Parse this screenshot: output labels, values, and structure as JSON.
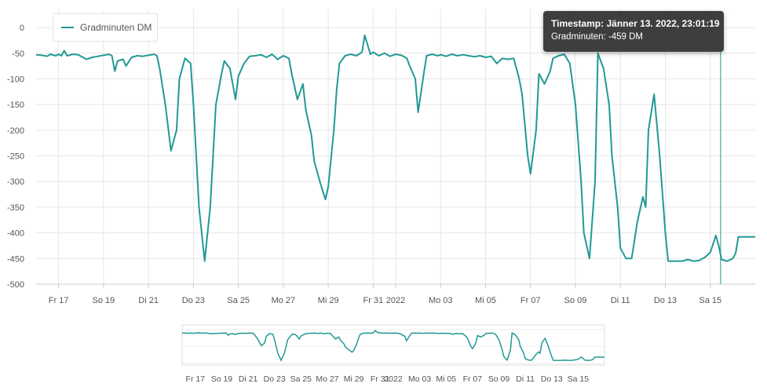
{
  "chart_data": {
    "type": "line",
    "series": [
      {
        "name": "Gradminuten DM",
        "points": [
          [
            "2022-01-16 00:00",
            -53
          ],
          [
            "2022-01-16 06:00",
            -54
          ],
          [
            "2022-01-16 12:00",
            -56
          ],
          [
            "2022-01-16 15:00",
            -52
          ],
          [
            "2022-01-16 21:00",
            -55
          ],
          [
            "2022-01-17 00:00",
            -52
          ],
          [
            "2022-01-17 03:00",
            -55
          ],
          [
            "2022-01-17 06:00",
            -45
          ],
          [
            "2022-01-17 09:00",
            -55
          ],
          [
            "2022-01-17 15:00",
            -52
          ],
          [
            "2022-01-17 21:00",
            -53
          ],
          [
            "2022-01-18 00:00",
            -56
          ],
          [
            "2022-01-18 06:00",
            -62
          ],
          [
            "2022-01-18 12:00",
            -58
          ],
          [
            "2022-01-18 18:00",
            -56
          ],
          [
            "2022-01-19 00:00",
            -54
          ],
          [
            "2022-01-19 06:00",
            -52
          ],
          [
            "2022-01-19 09:00",
            -55
          ],
          [
            "2022-01-19 12:00",
            -85
          ],
          [
            "2022-01-19 15:00",
            -65
          ],
          [
            "2022-01-19 21:00",
            -62
          ],
          [
            "2022-01-20 00:00",
            -75
          ],
          [
            "2022-01-20 06:00",
            -58
          ],
          [
            "2022-01-20 12:00",
            -55
          ],
          [
            "2022-01-20 18:00",
            -56
          ],
          [
            "2022-01-21 00:00",
            -54
          ],
          [
            "2022-01-21 06:00",
            -52
          ],
          [
            "2022-01-21 09:00",
            -55
          ],
          [
            "2022-01-21 12:00",
            -80
          ],
          [
            "2022-01-21 18:00",
            -150
          ],
          [
            "2022-01-22 00:00",
            -240
          ],
          [
            "2022-01-22 06:00",
            -200
          ],
          [
            "2022-01-22 09:00",
            -100
          ],
          [
            "2022-01-22 15:00",
            -60
          ],
          [
            "2022-01-22 21:00",
            -70
          ],
          [
            "2022-01-23 00:00",
            -150
          ],
          [
            "2022-01-23 06:00",
            -350
          ],
          [
            "2022-01-23 12:00",
            -455
          ],
          [
            "2022-01-23 18:00",
            -350
          ],
          [
            "2022-01-24 00:00",
            -150
          ],
          [
            "2022-01-24 06:00",
            -90
          ],
          [
            "2022-01-24 09:00",
            -65
          ],
          [
            "2022-01-24 15:00",
            -80
          ],
          [
            "2022-01-24 21:00",
            -140
          ],
          [
            "2022-01-25 00:00",
            -95
          ],
          [
            "2022-01-25 06:00",
            -70
          ],
          [
            "2022-01-25 12:00",
            -56
          ],
          [
            "2022-01-25 18:00",
            -55
          ],
          [
            "2022-01-26 00:00",
            -53
          ],
          [
            "2022-01-26 06:00",
            -58
          ],
          [
            "2022-01-26 12:00",
            -52
          ],
          [
            "2022-01-26 18:00",
            -62
          ],
          [
            "2022-01-27 00:00",
            -55
          ],
          [
            "2022-01-27 06:00",
            -60
          ],
          [
            "2022-01-27 09:00",
            -90
          ],
          [
            "2022-01-27 15:00",
            -140
          ],
          [
            "2022-01-27 21:00",
            -110
          ],
          [
            "2022-01-28 00:00",
            -160
          ],
          [
            "2022-01-28 06:00",
            -210
          ],
          [
            "2022-01-28 09:00",
            -260
          ],
          [
            "2022-01-28 15:00",
            -300
          ],
          [
            "2022-01-28 21:00",
            -335
          ],
          [
            "2022-01-29 00:00",
            -310
          ],
          [
            "2022-01-29 06:00",
            -200
          ],
          [
            "2022-01-29 09:00",
            -120
          ],
          [
            "2022-01-29 12:00",
            -70
          ],
          [
            "2022-01-29 18:00",
            -55
          ],
          [
            "2022-01-30 00:00",
            -52
          ],
          [
            "2022-01-30 06:00",
            -55
          ],
          [
            "2022-01-30 12:00",
            -48
          ],
          [
            "2022-01-30 15:00",
            -15
          ],
          [
            "2022-01-30 21:00",
            -52
          ],
          [
            "2022-01-31 00:00",
            -48
          ],
          [
            "2022-01-31 06:00",
            -55
          ],
          [
            "2022-01-31 12:00",
            -50
          ],
          [
            "2022-01-31 18:00",
            -56
          ],
          [
            "2022-02-01 00:00",
            -52
          ],
          [
            "2022-02-01 06:00",
            -54
          ],
          [
            "2022-02-01 12:00",
            -60
          ],
          [
            "2022-02-01 15:00",
            -75
          ],
          [
            "2022-02-01 21:00",
            -100
          ],
          [
            "2022-02-02 00:00",
            -165
          ],
          [
            "2022-02-02 06:00",
            -90
          ],
          [
            "2022-02-02 09:00",
            -55
          ],
          [
            "2022-02-02 15:00",
            -52
          ],
          [
            "2022-02-02 21:00",
            -55
          ],
          [
            "2022-02-03 00:00",
            -53
          ],
          [
            "2022-02-03 06:00",
            -56
          ],
          [
            "2022-02-03 12:00",
            -52
          ],
          [
            "2022-02-03 18:00",
            -55
          ],
          [
            "2022-02-04 00:00",
            -53
          ],
          [
            "2022-02-04 06:00",
            -55
          ],
          [
            "2022-02-04 12:00",
            -57
          ],
          [
            "2022-02-04 18:00",
            -55
          ],
          [
            "2022-02-05 00:00",
            -58
          ],
          [
            "2022-02-05 06:00",
            -56
          ],
          [
            "2022-02-05 12:00",
            -70
          ],
          [
            "2022-02-05 18:00",
            -60
          ],
          [
            "2022-02-06 00:00",
            -62
          ],
          [
            "2022-02-06 06:00",
            -60
          ],
          [
            "2022-02-06 12:00",
            -100
          ],
          [
            "2022-02-06 15:00",
            -130
          ],
          [
            "2022-02-06 21:00",
            -250
          ],
          [
            "2022-02-07 00:00",
            -285
          ],
          [
            "2022-02-07 06:00",
            -200
          ],
          [
            "2022-02-07 09:00",
            -90
          ],
          [
            "2022-02-07 15:00",
            -110
          ],
          [
            "2022-02-07 21:00",
            -85
          ],
          [
            "2022-02-08 00:00",
            -60
          ],
          [
            "2022-02-08 06:00",
            -55
          ],
          [
            "2022-02-08 12:00",
            -52
          ],
          [
            "2022-02-08 18:00",
            -70
          ],
          [
            "2022-02-09 00:00",
            -150
          ],
          [
            "2022-02-09 06:00",
            -300
          ],
          [
            "2022-02-09 09:00",
            -400
          ],
          [
            "2022-02-09 15:00",
            -450
          ],
          [
            "2022-02-09 21:00",
            -300
          ],
          [
            "2022-02-10 00:00",
            -50
          ],
          [
            "2022-02-10 06:00",
            -80
          ],
          [
            "2022-02-10 12:00",
            -150
          ],
          [
            "2022-02-10 15:00",
            -250
          ],
          [
            "2022-02-10 21:00",
            -350
          ],
          [
            "2022-02-11 00:00",
            -430
          ],
          [
            "2022-02-11 06:00",
            -450
          ],
          [
            "2022-02-11 12:00",
            -450
          ],
          [
            "2022-02-11 18:00",
            -380
          ],
          [
            "2022-02-12 00:00",
            -330
          ],
          [
            "2022-02-12 03:00",
            -350
          ],
          [
            "2022-02-12 06:00",
            -200
          ],
          [
            "2022-02-12 12:00",
            -130
          ],
          [
            "2022-02-12 18:00",
            -250
          ],
          [
            "2022-02-13 00:00",
            -400
          ],
          [
            "2022-02-13 03:00",
            -455
          ],
          [
            "2022-02-13 12:00",
            -455
          ],
          [
            "2022-02-13 18:00",
            -455
          ],
          [
            "2022-02-14 00:00",
            -452
          ],
          [
            "2022-02-14 06:00",
            -455
          ],
          [
            "2022-02-14 12:00",
            -454
          ],
          [
            "2022-02-14 18:00",
            -448
          ],
          [
            "2022-02-15 00:00",
            -438
          ],
          [
            "2022-02-15 06:00",
            -405
          ],
          [
            "2022-02-15 09:00",
            -425
          ],
          [
            "2022-02-15 12:00",
            -452
          ],
          [
            "2022-02-15 18:00",
            -455
          ],
          [
            "2022-02-16 00:00",
            -450
          ],
          [
            "2022-02-16 03:00",
            -440
          ],
          [
            "2022-02-16 06:00",
            -408
          ],
          [
            "2022-02-16 18:00",
            -408
          ],
          [
            "2022-02-17 00:00",
            -408
          ]
        ]
      }
    ],
    "y_ticks": [
      0,
      -50,
      -100,
      -150,
      -200,
      -250,
      -300,
      -350,
      -400,
      -450,
      -500
    ],
    "ylim": [
      -500,
      20
    ],
    "x_range": [
      "2022-01-16 00:00",
      "2022-02-17 00:00"
    ],
    "x_ticks": [
      {
        "date": "2022-01-17",
        "label": "Fr 17"
      },
      {
        "date": "2022-01-19",
        "label": "So 19"
      },
      {
        "date": "2022-01-21",
        "label": "Di 21"
      },
      {
        "date": "2022-01-23",
        "label": "Do 23"
      },
      {
        "date": "2022-01-25",
        "label": "Sa 25"
      },
      {
        "date": "2022-01-27",
        "label": "Mo 27"
      },
      {
        "date": "2022-01-29",
        "label": "Mi 29"
      },
      {
        "date": "2022-01-31",
        "label": "Fr 31"
      },
      {
        "date": "2022-02-01",
        "label": "2022"
      },
      {
        "date": "2022-02-03",
        "label": "Mo 03"
      },
      {
        "date": "2022-02-05",
        "label": "Mi 05"
      },
      {
        "date": "2022-02-07",
        "label": "Fr 07"
      },
      {
        "date": "2022-02-09",
        "label": "So 09"
      },
      {
        "date": "2022-02-11",
        "label": "Di 11"
      },
      {
        "date": "2022-02-13",
        "label": "Do 13"
      },
      {
        "date": "2022-02-15",
        "label": "Sa 15"
      }
    ],
    "crosshair_x": "2022-02-15 11:00",
    "grid": true,
    "legend": "top-left",
    "title": "",
    "xlabel": "",
    "ylabel": ""
  },
  "tooltip": {
    "label": "Timestamp: Jänner 13. 2022, 23:01:19",
    "value": "Gradminuten: -459 DM"
  },
  "colors": {
    "series": "#229995",
    "grid": "#e6e6e6",
    "tick_text": "#555555"
  }
}
